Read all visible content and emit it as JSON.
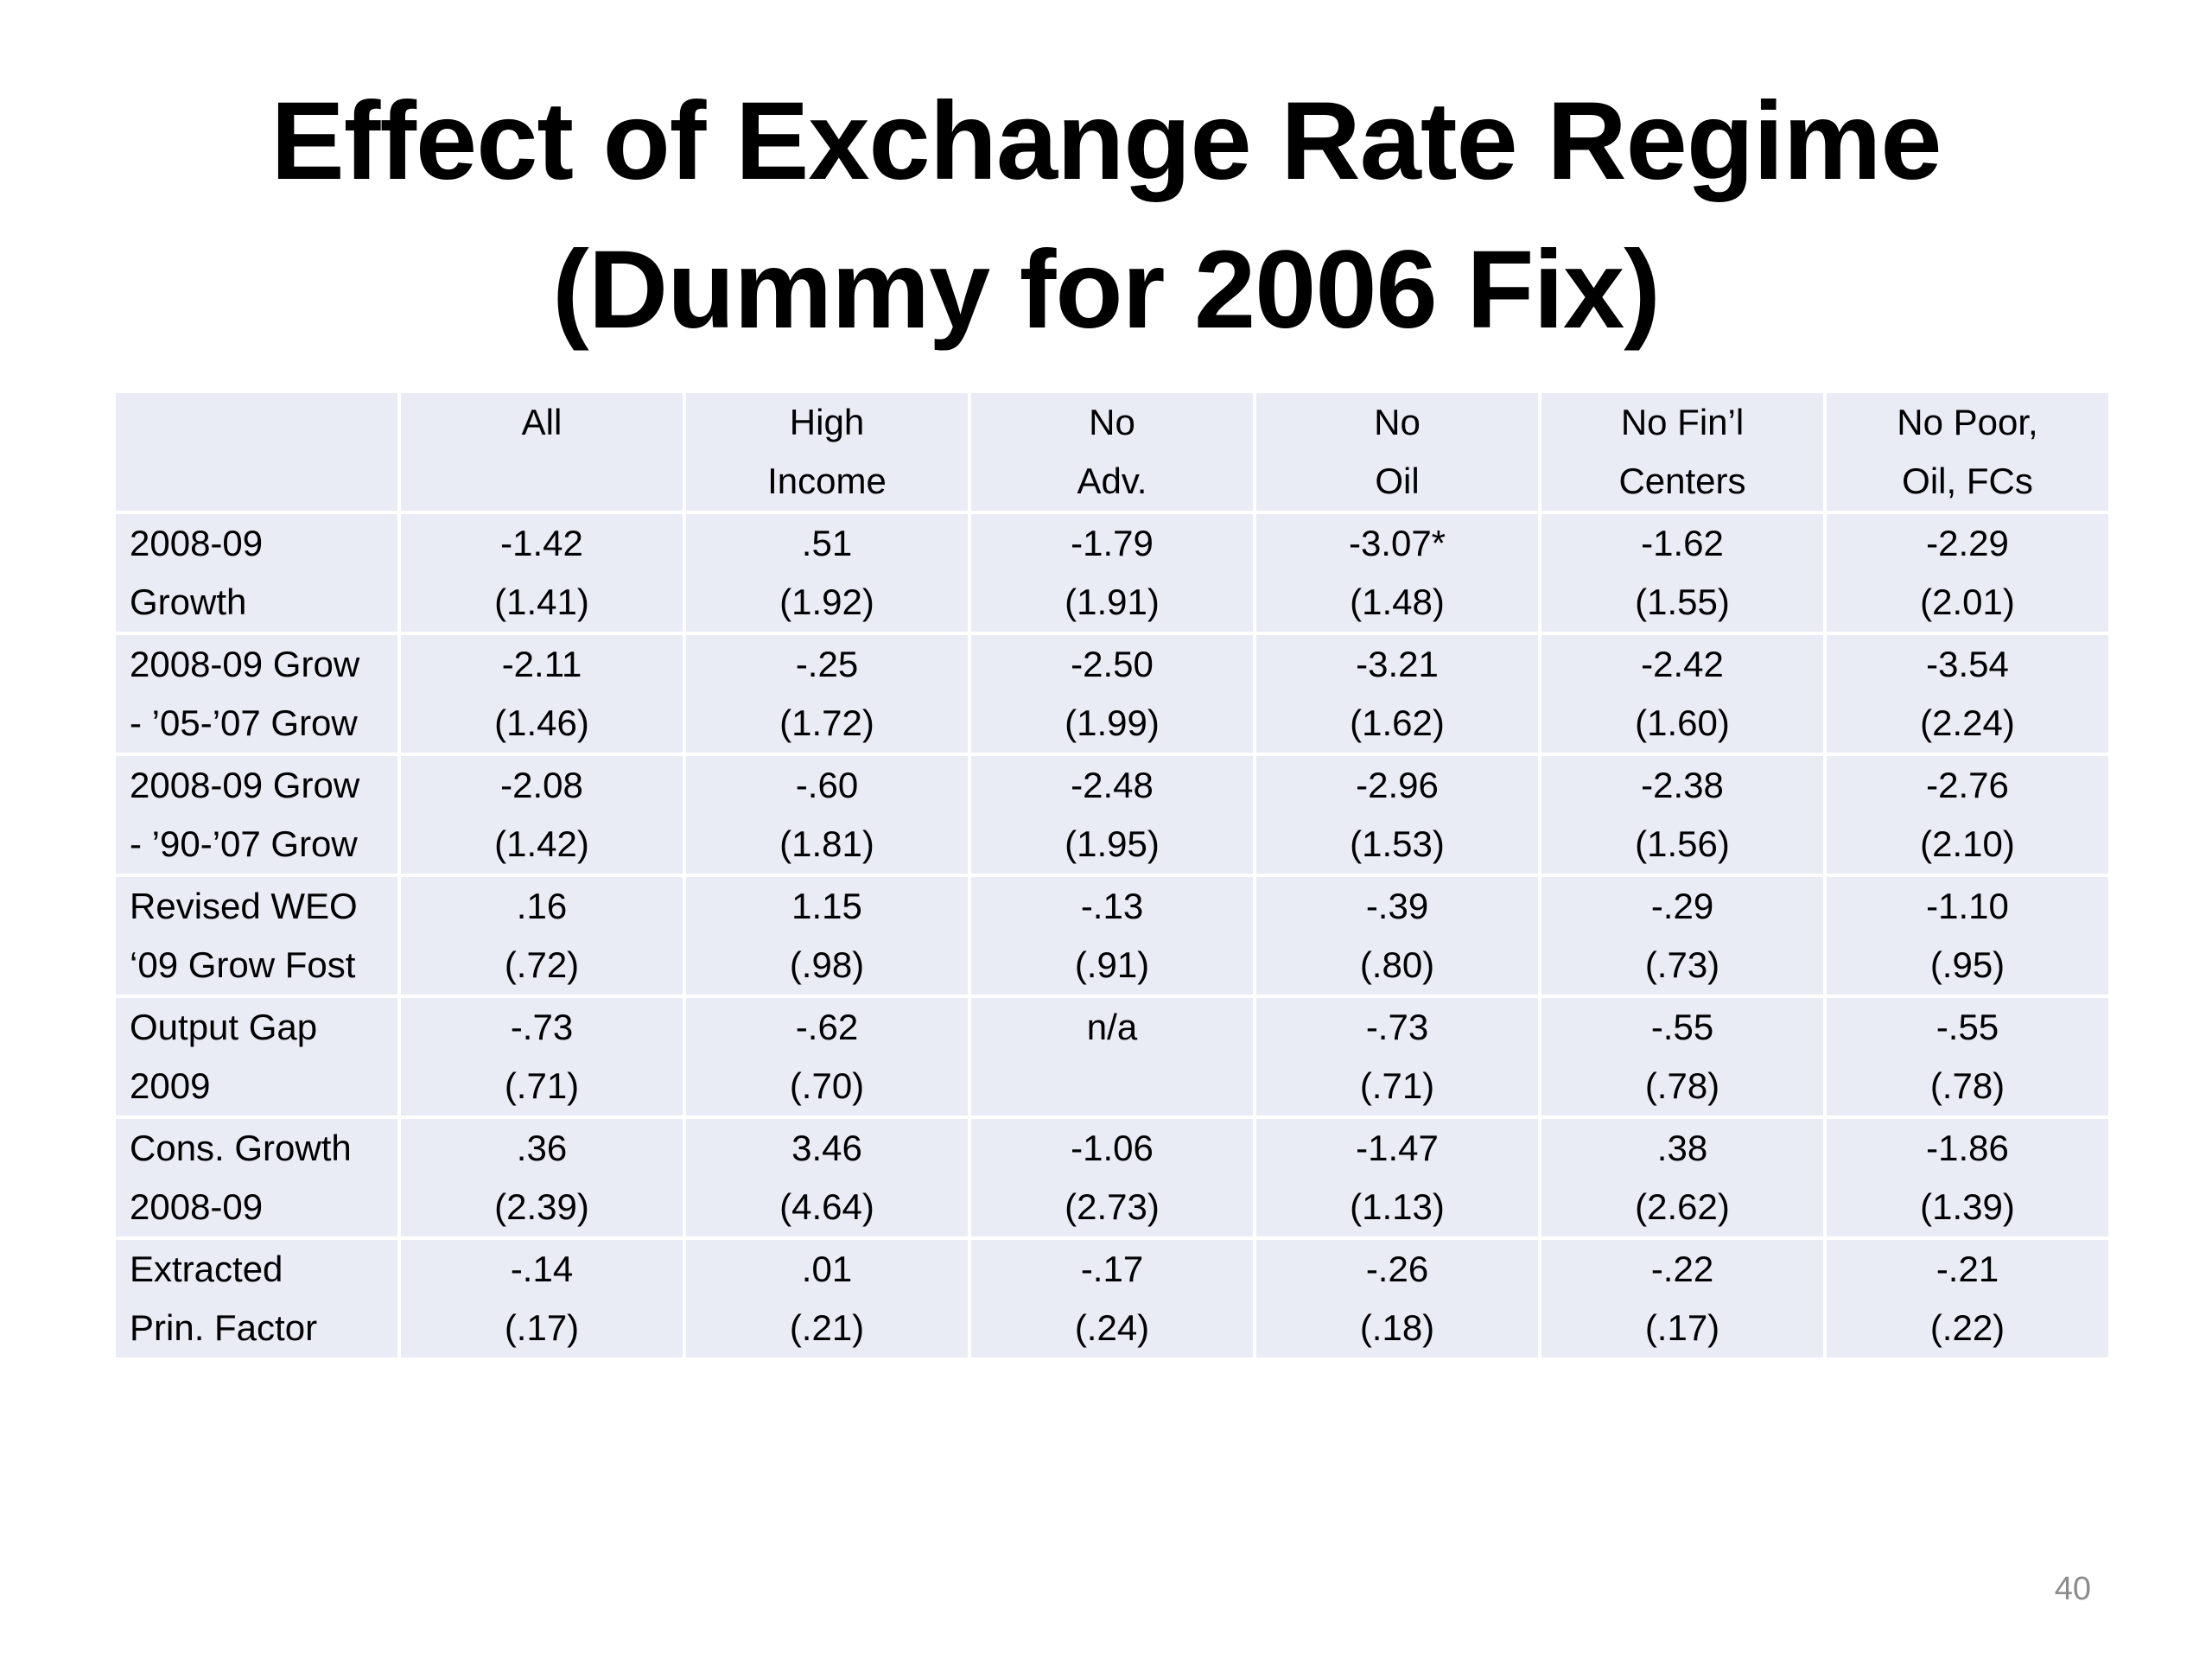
{
  "slide": {
    "title_line1": "Effect of Exchange Rate Regime",
    "title_line2": "(Dummy for 2006 Fix)",
    "page_number": "40"
  },
  "table": {
    "columns": [
      {
        "line1": "All",
        "line2": ""
      },
      {
        "line1": "High",
        "line2": "Income"
      },
      {
        "line1": "No",
        "line2": "Adv."
      },
      {
        "line1": "No",
        "line2": "Oil"
      },
      {
        "line1": "No Fin’l",
        "line2": "Centers"
      },
      {
        "line1": "No Poor,",
        "line2": "Oil, FCs"
      }
    ],
    "rows": [
      {
        "label1": "2008-09",
        "label2": "Growth",
        "cells": [
          {
            "coef": "-1.42",
            "se": "(1.41)"
          },
          {
            "coef": ".51",
            "se": "(1.92)"
          },
          {
            "coef": "-1.79",
            "se": "(1.91)"
          },
          {
            "coef": "-3.07*",
            "se": "(1.48)"
          },
          {
            "coef": "-1.62",
            "se": "(1.55)"
          },
          {
            "coef": "-2.29",
            "se": "(2.01)"
          }
        ]
      },
      {
        "label1": "2008-09 Grow",
        "label2": "- ’05-’07 Grow",
        "cells": [
          {
            "coef": "-2.11",
            "se": "(1.46)"
          },
          {
            "coef": "-.25",
            "se": "(1.72)"
          },
          {
            "coef": "-2.50",
            "se": "(1.99)"
          },
          {
            "coef": "-3.21",
            "se": "(1.62)"
          },
          {
            "coef": "-2.42",
            "se": "(1.60)"
          },
          {
            "coef": "-3.54",
            "se": "(2.24)"
          }
        ]
      },
      {
        "label1": "2008-09 Grow",
        "label2": "- ’90-’07 Grow",
        "cells": [
          {
            "coef": "-2.08",
            "se": "(1.42)"
          },
          {
            "coef": "-.60",
            "se": "(1.81)"
          },
          {
            "coef": "-2.48",
            "se": "(1.95)"
          },
          {
            "coef": "-2.96",
            "se": "(1.53)"
          },
          {
            "coef": "-2.38",
            "se": "(1.56)"
          },
          {
            "coef": "-2.76",
            "se": "(2.10)"
          }
        ]
      },
      {
        "label1": "Revised WEO",
        "label2": "‘09 Grow Fost",
        "cells": [
          {
            "coef": ".16",
            "se": "(.72)"
          },
          {
            "coef": "1.15",
            "se": "(.98)"
          },
          {
            "coef": "-.13",
            "se": "(.91)"
          },
          {
            "coef": "-.39",
            "se": "(.80)"
          },
          {
            "coef": "-.29",
            "se": "(.73)"
          },
          {
            "coef": "-1.10",
            "se": "(.95)"
          }
        ]
      },
      {
        "label1": "Output Gap",
        "label2": "2009",
        "cells": [
          {
            "coef": "-.73",
            "se": "(.71)"
          },
          {
            "coef": "-.62",
            "se": "(.70)"
          },
          {
            "coef": "n/a",
            "se": ""
          },
          {
            "coef": "-.73",
            "se": "(.71)"
          },
          {
            "coef": "-.55",
            "se": "(.78)"
          },
          {
            "coef": "-.55",
            "se": "(.78)"
          }
        ]
      },
      {
        "label1": "Cons. Growth",
        "label2": "2008-09",
        "cells": [
          {
            "coef": ".36",
            "se": "(2.39)"
          },
          {
            "coef": "3.46",
            "se": "(4.64)"
          },
          {
            "coef": "-1.06",
            "se": "(2.73)"
          },
          {
            "coef": "-1.47",
            "se": "(1.13)"
          },
          {
            "coef": ".38",
            "se": "(2.62)"
          },
          {
            "coef": "-1.86",
            "se": "(1.39)"
          }
        ]
      },
      {
        "label1": "Extracted",
        "label2": "Prin. Factor",
        "cells": [
          {
            "coef": "-.14",
            "se": "(.17)"
          },
          {
            "coef": ".01",
            "se": "(.21)"
          },
          {
            "coef": "-.17",
            "se": "(.24)"
          },
          {
            "coef": "-.26",
            "se": "(.18)"
          },
          {
            "coef": "-.22",
            "se": "(.17)"
          },
          {
            "coef": "-.21",
            "se": "(.22)"
          }
        ]
      }
    ]
  }
}
